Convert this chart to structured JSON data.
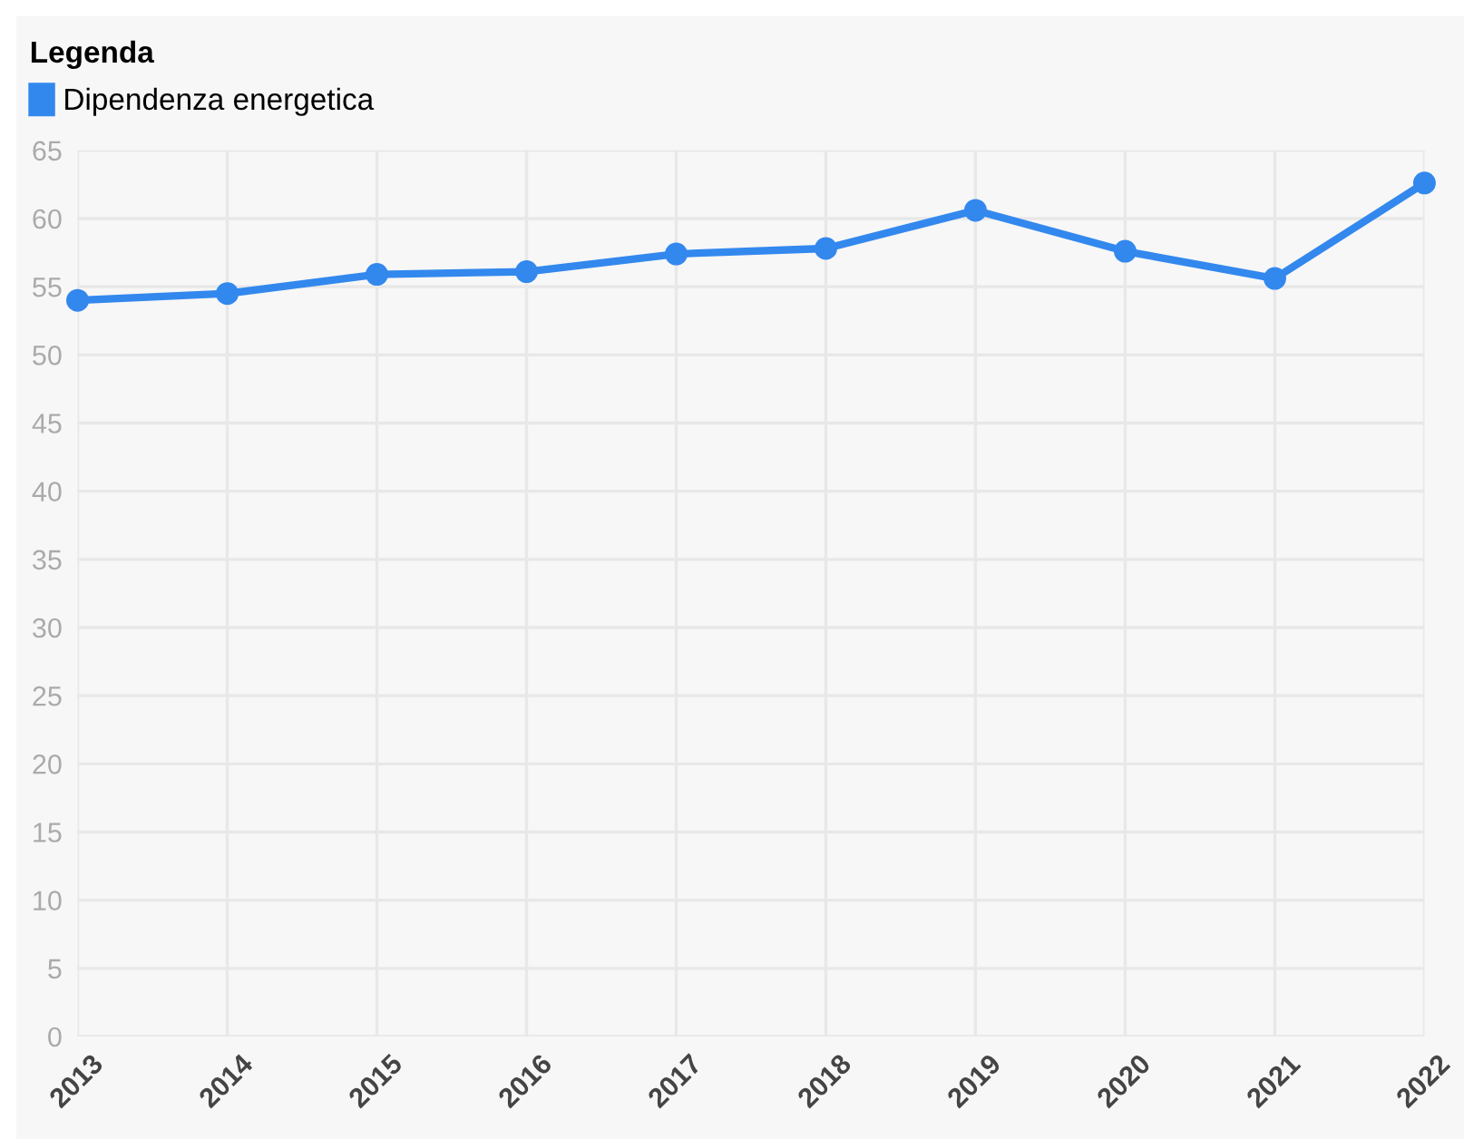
{
  "chart_data": {
    "type": "line",
    "legend_title": "Legenda",
    "categories": [
      "2013",
      "2014",
      "2015",
      "2016",
      "2017",
      "2018",
      "2019",
      "2020",
      "2021",
      "2022"
    ],
    "series": [
      {
        "name": "Dipendenza energetica",
        "color": "#3388ee",
        "values": [
          54.0,
          54.5,
          55.9,
          56.1,
          57.4,
          57.8,
          60.6,
          57.6,
          55.6,
          62.6
        ]
      }
    ],
    "ylim": [
      0,
      65
    ],
    "yticks": [
      0,
      5,
      10,
      15,
      20,
      25,
      30,
      35,
      40,
      45,
      50,
      55,
      60,
      65
    ],
    "grid": true,
    "legend": "top left",
    "marker": "circle",
    "line_style": "solid"
  }
}
